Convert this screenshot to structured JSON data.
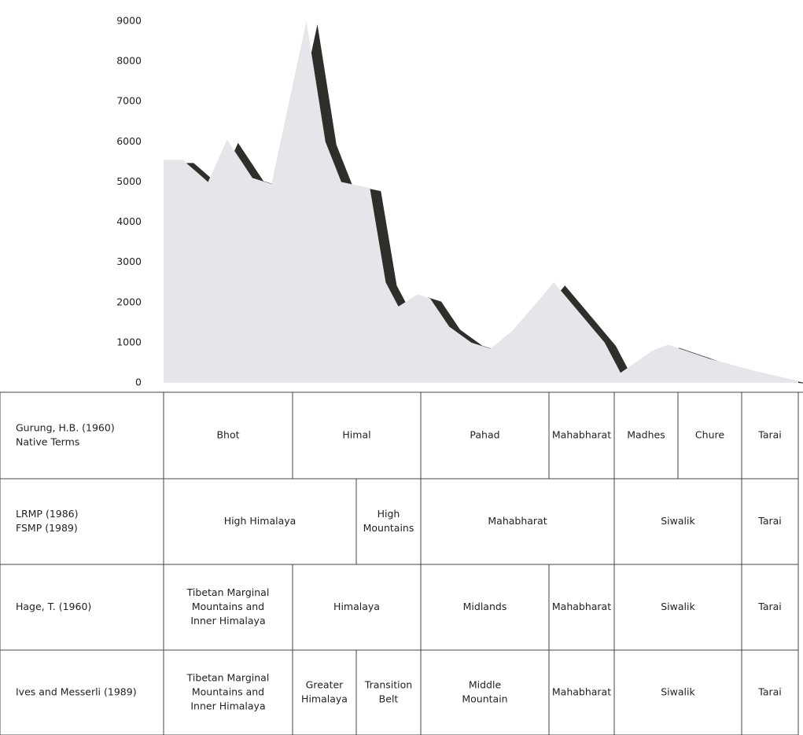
{
  "chart_data": {
    "type": "area",
    "x": [
      0,
      3,
      7,
      10,
      14,
      17,
      22.5,
      25.5,
      28,
      32.5,
      35,
      37,
      40,
      42,
      45,
      48.5,
      51.5,
      55,
      61.5,
      69.5,
      72,
      77,
      79.5,
      86,
      93,
      100
    ],
    "values": [
      5550,
      5550,
      5000,
      6050,
      5100,
      4950,
      9000,
      6000,
      5000,
      4850,
      2500,
      1900,
      2200,
      2100,
      1400,
      1000,
      850,
      1300,
      2500,
      1000,
      250,
      800,
      950,
      600,
      300,
      50
    ],
    "xlim": [
      0,
      100
    ],
    "ylim": [
      0,
      9000
    ],
    "yticks": [
      0,
      1000,
      2000,
      3000,
      4000,
      5000,
      6000,
      7000,
      8000,
      9000
    ],
    "color": "#e4e6ea",
    "edge_color": "#2e2e2a",
    "grid": false
  },
  "table": {
    "rows": [
      {
        "label": [
          "Gurung, H.B. (1960)",
          "Native Terms"
        ],
        "cells": [
          [
            "Bhot"
          ],
          [
            "Himal"
          ],
          [
            "Pahad"
          ],
          [
            "Mahabharat"
          ],
          [
            "Madhes"
          ],
          [
            "Chure"
          ],
          [
            "Tarai"
          ]
        ]
      },
      {
        "label": [
          "LRMP (1986)",
          "FSMP (1989)"
        ],
        "cells": [
          [
            "High Himalaya"
          ],
          [
            "High",
            "Mountains"
          ],
          [
            "Mahabharat"
          ],
          [
            "Siwalik"
          ],
          [
            "Tarai"
          ]
        ]
      },
      {
        "label": [
          "Hage, T. (1960)"
        ],
        "cells": [
          [
            "Tibetan Marginal",
            "Mountains and",
            "Inner Himalaya"
          ],
          [
            "Himalaya"
          ],
          [
            "Midlands"
          ],
          [
            "Mahabharat"
          ],
          [
            "Siwalik"
          ],
          [
            "Tarai"
          ]
        ]
      },
      {
        "label": [
          "Ives and Messerli (1989)"
        ],
        "cells": [
          [
            "Tibetan Marginal",
            "Mountains and",
            "Inner Himalaya"
          ],
          [
            "Greater",
            "Himalaya"
          ],
          [
            "Transition",
            "Belt"
          ],
          [
            "Middle",
            "Mountain"
          ],
          [
            "Mahabharat"
          ],
          [
            "Siwalik"
          ],
          [
            "Tarai"
          ]
        ]
      }
    ]
  }
}
